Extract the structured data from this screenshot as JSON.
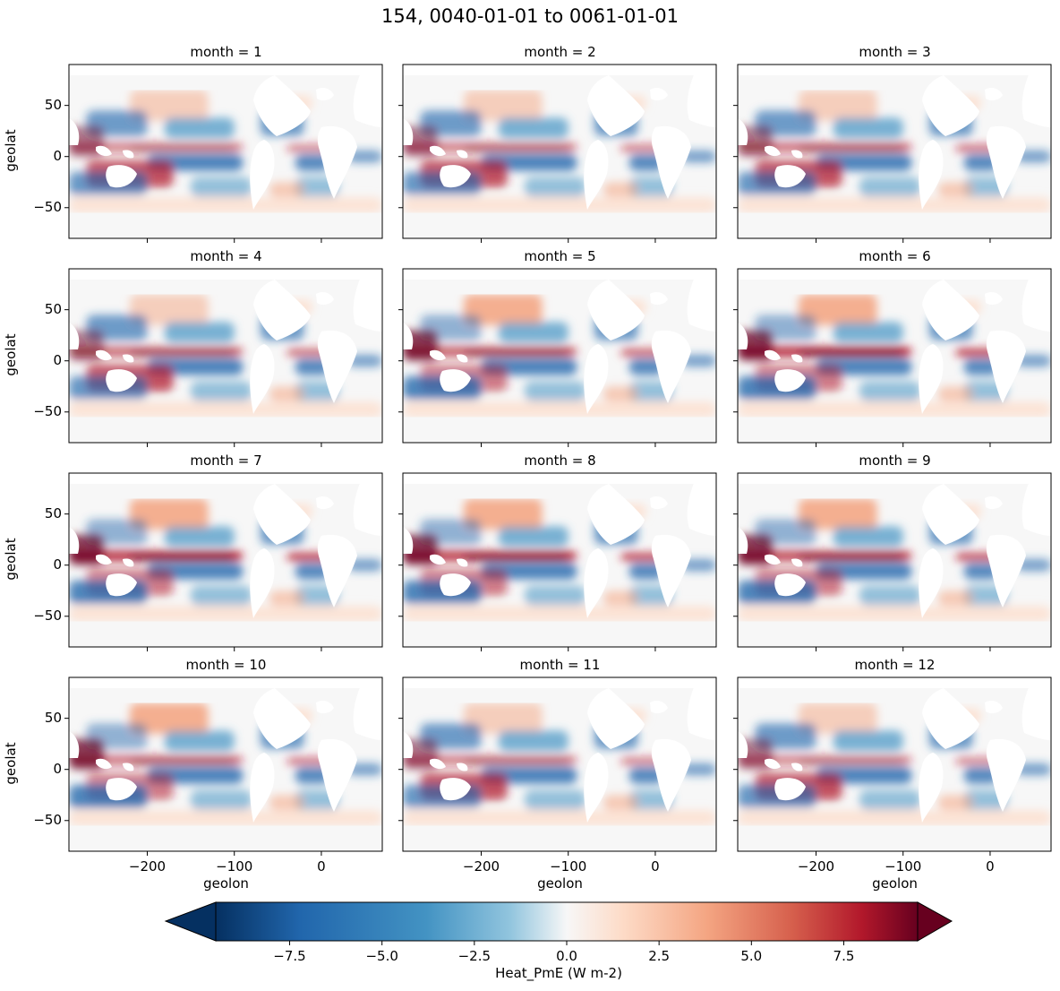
{
  "chart_data": {
    "type": "heatmap",
    "title": "154, 0040-01-01 to 0061-01-01",
    "variable": "Heat_PmE",
    "xlabel": "geolon",
    "ylabel": "geolat",
    "xlim": [
      -290,
      70
    ],
    "ylim": [
      -80,
      90
    ],
    "x_ticks": [
      -200,
      -100,
      0
    ],
    "x_tick_labels": [
      "−200",
      "−100",
      "0"
    ],
    "y_ticks": [
      50,
      0,
      -50
    ],
    "y_tick_labels": [
      "50",
      "0",
      "−50"
    ],
    "panels": [
      {
        "title": "month = 1"
      },
      {
        "title": "month = 2"
      },
      {
        "title": "month = 3"
      },
      {
        "title": "month = 4"
      },
      {
        "title": "month = 5"
      },
      {
        "title": "month = 6"
      },
      {
        "title": "month = 7"
      },
      {
        "title": "month = 8"
      },
      {
        "title": "month = 9"
      },
      {
        "title": "month = 10"
      },
      {
        "title": "month = 11"
      },
      {
        "title": "month = 12"
      }
    ],
    "colorbar": {
      "label": "Heat_PmE (W m-2)",
      "colormap": "RdBu_r",
      "vmin": -9.5,
      "vmax": 9.5,
      "extend": "both",
      "ticks": [
        -7.5,
        -5.0,
        -2.5,
        0.0,
        2.5,
        5.0,
        7.5
      ],
      "tick_labels": [
        "−7.5",
        "−5.0",
        "−2.5",
        "0.0",
        "2.5",
        "5.0",
        "7.5"
      ]
    }
  },
  "colors": {
    "neg_strong": "#053061",
    "neg_mid": "#2166ac",
    "neg_light": "#92c5de",
    "neutral": "#f7f7f7",
    "pos_light": "#fddbc7",
    "pos_mid": "#d6604d",
    "pos_strong": "#67001f",
    "land": "#ffffff",
    "axis": "#000000"
  }
}
